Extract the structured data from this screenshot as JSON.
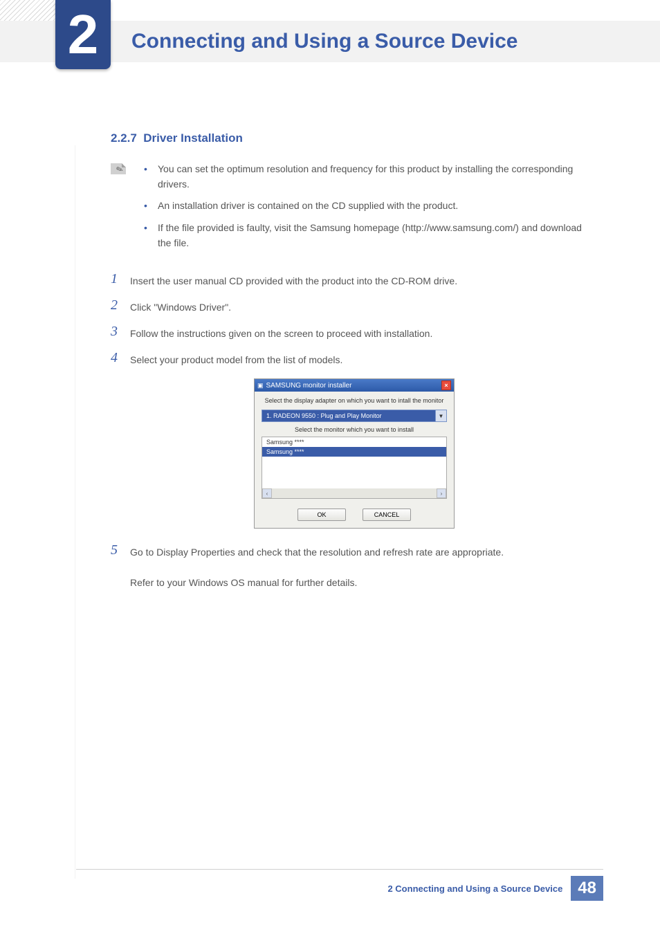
{
  "header": {
    "chapter_number": "2",
    "chapter_title": "Connecting and Using a Source Device",
    "title_color": "#3a5ca8",
    "header_bg": "#f2f2f2",
    "badge_bg": "#2d4a8a"
  },
  "section": {
    "number": "2.2.7",
    "title": "Driver Installation",
    "heading_color": "#3a5ca8"
  },
  "notes": [
    "You can set the optimum resolution and frequency for this product by installing the corresponding drivers.",
    "An installation driver is contained on the CD supplied with the product.",
    "If the file provided is faulty, visit the Samsung homepage (http://www.samsung.com/) and download the file."
  ],
  "steps": [
    {
      "n": "1",
      "text": "Insert the user manual CD provided with the product into the CD-ROM drive."
    },
    {
      "n": "2",
      "text": "Click \"Windows Driver\"."
    },
    {
      "n": "3",
      "text": "Follow the instructions given on the screen to proceed with installation."
    },
    {
      "n": "4",
      "text": "Select your product model from the list of models."
    },
    {
      "n": "5",
      "text": "Go to Display Properties and check that the resolution and refresh rate are appropriate."
    }
  ],
  "step5_extra": "Refer to your Windows OS manual for further details.",
  "installer": {
    "titlebar": "SAMSUNG monitor installer",
    "caption1": "Select the display adapter on which you want to intall the monitor",
    "dropdown_value": "1. RADEON 9550 : Plug and Play Monitor",
    "caption2": "Select the monitor which you want to install",
    "list_items": [
      "Samsung ****",
      "Samsung ****"
    ],
    "ok_label": "OK",
    "cancel_label": "CANCEL",
    "titlebar_bg": "#3a6ab8",
    "close_bg": "#e84c3d",
    "dropdown_bg": "#3a5ca8",
    "selected_bg": "#3a5ca8"
  },
  "footer": {
    "text": "2 Connecting and Using a Source Device",
    "page_number": "48",
    "badge_bg": "#5b7bb8",
    "text_color": "#3a5ca8"
  },
  "colors": {
    "body_text": "#555555",
    "accent": "#3a5ca8",
    "rule": "#d0d0d0"
  }
}
